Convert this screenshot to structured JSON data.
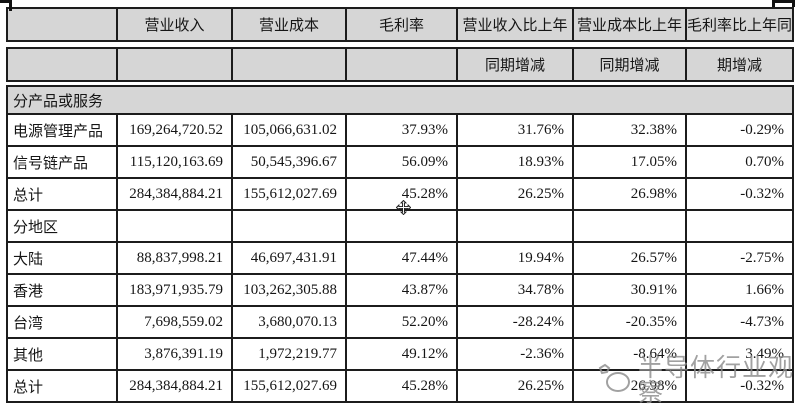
{
  "header_row1": [
    "",
    "营业收入",
    "营业成本",
    "毛利率",
    "营业收入比上年",
    "营业成本比上年",
    "毛利率比上年同"
  ],
  "header_row2": [
    "",
    "",
    "",
    "",
    "同期增减",
    "同期增减",
    "期增减"
  ],
  "rows": [
    {
      "type": "section",
      "label": "分产品或服务"
    },
    {
      "type": "data",
      "label": "电源管理产品",
      "values": [
        "169,264,720.52",
        "105,066,631.02",
        "37.93%",
        "31.76%",
        "32.38%",
        "-0.29%"
      ]
    },
    {
      "type": "data",
      "label": "信号链产品",
      "values": [
        "115,120,163.69",
        "50,545,396.67",
        "56.09%",
        "18.93%",
        "17.05%",
        "0.70%"
      ]
    },
    {
      "type": "data",
      "label": "总计",
      "values": [
        "284,384,884.21",
        "155,612,027.69",
        "45.28%",
        "26.25%",
        "26.98%",
        "-0.32%"
      ]
    },
    {
      "type": "empty",
      "label": "分地区",
      "values": [
        "",
        "",
        "",
        "",
        "",
        ""
      ]
    },
    {
      "type": "data",
      "label": "大陆",
      "values": [
        "88,837,998.21",
        "46,697,431.91",
        "47.44%",
        "19.94%",
        "26.57%",
        "-2.75%"
      ]
    },
    {
      "type": "data",
      "label": "香港",
      "values": [
        "183,971,935.79",
        "103,262,305.88",
        "43.87%",
        "34.78%",
        "30.91%",
        "1.66%"
      ]
    },
    {
      "type": "data",
      "label": "台湾",
      "values": [
        "7,698,559.02",
        "3,680,070.13",
        "52.20%",
        "-28.24%",
        "-20.35%",
        "-4.73%"
      ]
    },
    {
      "type": "data",
      "label": "其他",
      "values": [
        "3,876,391.19",
        "1,972,219.77",
        "49.12%",
        "-2.36%",
        "-8.64%",
        "3.49%"
      ]
    },
    {
      "type": "data",
      "label": "总计",
      "values": [
        "284,384,884.21",
        "155,612,027.69",
        "45.28%",
        "26.25%",
        "26.98%",
        "-0.32%"
      ]
    }
  ],
  "watermark": {
    "text": "半导体行业观察"
  },
  "colors": {
    "header_bg": "#d6d6d6",
    "border": "#1c1c1c",
    "watermark": "#8d8d8d"
  }
}
